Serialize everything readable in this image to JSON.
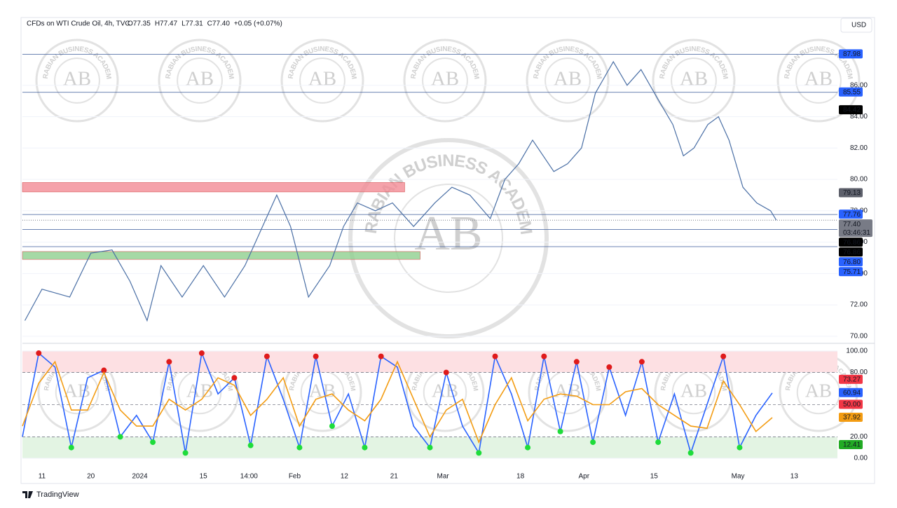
{
  "header": {
    "title": "CFDs on WTI Crude Oil, 4h, TVC",
    "ohlc": [
      "O77.35",
      "H77.47",
      "L77.31",
      "C77.40",
      "+0.05 (+0.07%)"
    ],
    "currency": "USD",
    "brand": "TradingView"
  },
  "watermark": {
    "initials": "AB",
    "name": "ARABIAN BUSINESS ACADEMY"
  },
  "chart_data": [
    {
      "type": "line",
      "xlim": [
        0,
        100
      ],
      "ylim": [
        69.77,
        90.32
      ],
      "yticks": [
        {
          "value": 70,
          "label": "70.00"
        },
        {
          "value": 72,
          "label": "72.00"
        },
        {
          "value": 74,
          "label": "74.00"
        },
        {
          "value": 76,
          "label": "76.00"
        },
        {
          "value": 78,
          "label": "78.00"
        },
        {
          "value": 80,
          "label": "80.00"
        },
        {
          "value": 82,
          "label": "82.00"
        },
        {
          "value": 84,
          "label": "84.00"
        },
        {
          "value": 86,
          "label": "86.00"
        }
      ],
      "xticks": [
        {
          "value": 2.4,
          "label": "11"
        },
        {
          "value": 8.4,
          "label": "20"
        },
        {
          "value": 14.4,
          "label": "2024"
        },
        {
          "value": 22.2,
          "label": "15"
        },
        {
          "value": 27.8,
          "label": "14:00"
        },
        {
          "value": 33.4,
          "label": "Feb"
        },
        {
          "value": 39.5,
          "label": "12"
        },
        {
          "value": 45.6,
          "label": "21"
        },
        {
          "value": 51.6,
          "label": "Mar"
        },
        {
          "value": 61.1,
          "label": "18"
        },
        {
          "value": 68.9,
          "label": "Apr"
        },
        {
          "value": 77.5,
          "label": "15"
        },
        {
          "value": 87.8,
          "label": "May"
        },
        {
          "value": 94.7,
          "label": "13"
        }
      ],
      "series": [
        {
          "name": "CFDs on WTI Crude Oil, 4h, TVC",
          "color": "#4a6fa5",
          "x": [
            0.3,
            2.4,
            5.8,
            8.4,
            11.0,
            13.2,
            15.3,
            17.0,
            19.6,
            22.2,
            24.8,
            27.3,
            29.9,
            31.2,
            32.9,
            35.1,
            37.7,
            39.4,
            41.1,
            43.3,
            45.4,
            48.0,
            50.6,
            52.7,
            54.9,
            57.4,
            59.2,
            60.9,
            62.6,
            65.2,
            66.9,
            68.6,
            70.3,
            72.5,
            74.2,
            75.9,
            78.1,
            79.8,
            81.1,
            82.4,
            84.1,
            85.4,
            86.7,
            88.4,
            90.1,
            91.8,
            92.5
          ],
          "values": [
            71,
            73,
            72.5,
            75.3,
            75.5,
            73.5,
            71,
            74.5,
            72.5,
            74.5,
            72.5,
            74.5,
            77.5,
            79,
            77,
            72.5,
            74.5,
            77,
            78.5,
            78,
            78.5,
            77,
            78.5,
            79.5,
            79,
            77.5,
            80,
            81,
            82.5,
            80.5,
            81,
            82,
            85.5,
            87.5,
            86,
            87,
            85,
            83.5,
            81.5,
            82,
            83.5,
            84,
            82.5,
            79.5,
            78.5,
            78,
            77.4
          ]
        }
      ],
      "zones": [
        {
          "y": [
            79.2,
            79.8
          ],
          "x": [
            0,
            46.9
          ],
          "color": "#f28b95"
        },
        {
          "y": [
            74.9,
            75.4
          ],
          "x": [
            0,
            48.8
          ],
          "color": "#8fcf8f"
        }
      ],
      "levels": [
        {
          "value": 87.98,
          "label": "87.98",
          "color": "#2962ff",
          "line": true
        },
        {
          "value": 85.55,
          "label": "85.55",
          "color": "#2962ff",
          "line": true
        },
        {
          "value": 84.42,
          "label": "84.42",
          "color": "#000000",
          "line": false
        },
        {
          "value": 79.13,
          "label": "79.13",
          "color": "#5d606b",
          "line": false
        },
        {
          "value": 77.76,
          "label": "77.76",
          "color": "#2962ff",
          "line": true
        },
        {
          "value": 77.4,
          "label": "77.40",
          "color": "#787b86",
          "line": false,
          "note": "03:46:31"
        },
        {
          "value": 76.86,
          "label": "76.86",
          "color": "#000000",
          "line": false
        },
        {
          "value": 76.86,
          "label": "76.86",
          "color": "#000000",
          "line": false
        },
        {
          "value": 76.8,
          "label": "76.80",
          "color": "#2962ff",
          "line": true
        },
        {
          "value": 75.71,
          "label": "75.71",
          "color": "#2962ff",
          "line": true
        }
      ]
    },
    {
      "type": "line",
      "xlim": [
        0,
        100
      ],
      "ylim": [
        -3.9,
        103.9
      ],
      "yticks": [
        {
          "value": 0,
          "label": "0.00"
        },
        {
          "value": 20,
          "label": "20.00"
        },
        {
          "value": 80,
          "label": "80.00"
        },
        {
          "value": 100,
          "label": "100.00"
        }
      ],
      "bands": [
        {
          "range": [
            80,
            100
          ],
          "color": "#fde0e3"
        },
        {
          "range": [
            0,
            20
          ],
          "color": "#e3f4e3"
        }
      ],
      "hlines": [
        80,
        50,
        20
      ],
      "series": [
        {
          "color": "#2962ff",
          "x": [
            0,
            2,
            4,
            6,
            8,
            10,
            12,
            14,
            16,
            18,
            20,
            22,
            24,
            26,
            28,
            30,
            32,
            34,
            36,
            38,
            40,
            42,
            44,
            46,
            48,
            50,
            52,
            54,
            56,
            58,
            60,
            62,
            64,
            66,
            68,
            70,
            72,
            74,
            76,
            78,
            80,
            82,
            84,
            86,
            88,
            90,
            92
          ],
          "values": [
            20,
            98,
            85,
            10,
            75,
            82,
            20,
            40,
            15,
            90,
            5,
            98,
            60,
            75,
            12,
            95,
            55,
            10,
            95,
            30,
            60,
            10,
            95,
            85,
            30,
            10,
            80,
            30,
            5,
            95,
            60,
            10,
            95,
            25,
            90,
            15,
            85,
            40,
            90,
            15,
            60,
            5,
            50,
            95,
            10,
            40,
            60.94
          ]
        },
        {
          "color": "#f39c12",
          "x": [
            0,
            2,
            4,
            6,
            8,
            10,
            12,
            14,
            16,
            18,
            20,
            22,
            24,
            26,
            28,
            30,
            32,
            34,
            36,
            38,
            40,
            42,
            44,
            46,
            48,
            50,
            52,
            54,
            56,
            58,
            60,
            62,
            64,
            66,
            68,
            70,
            72,
            74,
            76,
            78,
            80,
            82,
            84,
            86,
            88,
            90,
            92
          ],
          "values": [
            30,
            70,
            90,
            45,
            45,
            80,
            45,
            30,
            30,
            55,
            45,
            55,
            75,
            68,
            40,
            55,
            75,
            30,
            55,
            60,
            45,
            35,
            55,
            90,
            55,
            20,
            45,
            55,
            15,
            50,
            75,
            35,
            55,
            60,
            58,
            50,
            50,
            62,
            65,
            50,
            40,
            30,
            28,
            72,
            50,
            25,
            37.92
          ]
        }
      ],
      "levels": [
        {
          "value": 73.27,
          "label": "73.27",
          "color": "#f23645"
        },
        {
          "value": 60.94,
          "label": "60.94",
          "color": "#2962ff"
        },
        {
          "value": 50,
          "label": "50.00",
          "color": "#f23645"
        },
        {
          "value": 37.92,
          "label": "37.92",
          "color": "#f39c12"
        },
        {
          "value": 12.41,
          "label": "12.41",
          "color": "#22ab24"
        }
      ]
    }
  ]
}
